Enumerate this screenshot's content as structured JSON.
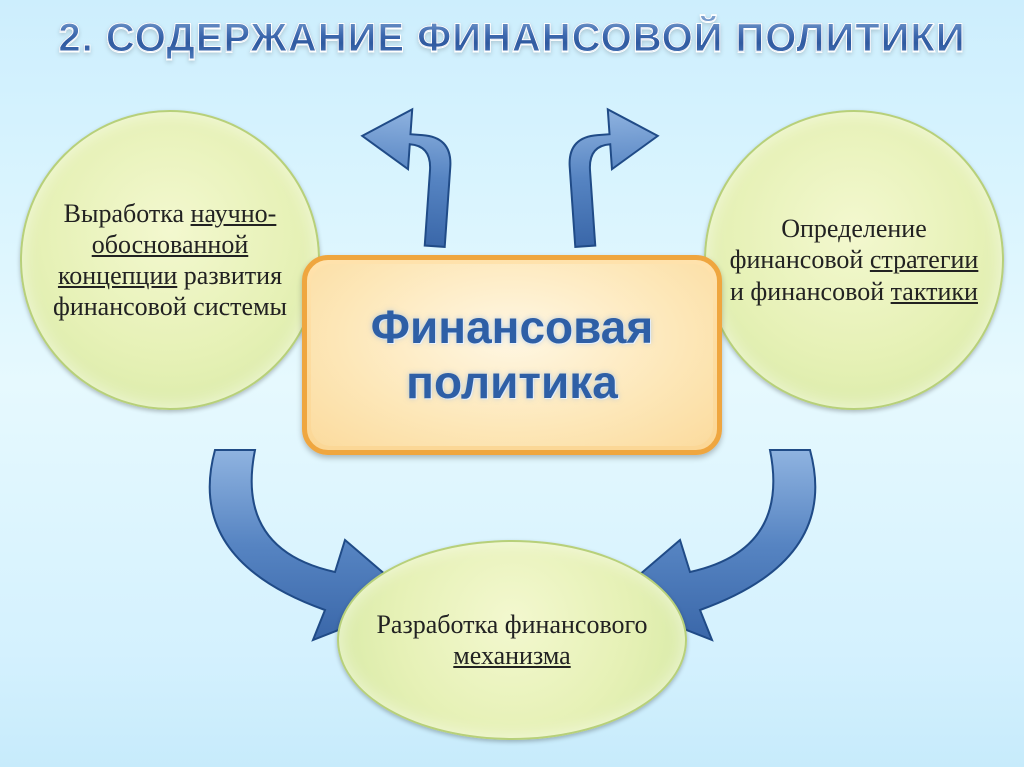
{
  "diagram": {
    "type": "flowchart",
    "title": "2. СОДЕРЖАНИЕ ФИНАНСОВОЙ ПОЛИТИКИ",
    "title_fontsize": 40,
    "title_gradient": [
      "#7fa3d0",
      "#2f5aa0"
    ],
    "title_stroke": "#ffffff",
    "background_gradient": [
      "#cdeefd",
      "#e6f9fe",
      "#c7ebfb"
    ],
    "center_node": {
      "line1": "Финансовая",
      "line2": "политика",
      "bg_gradient": [
        "#ffe2ac",
        "#fbdb9e"
      ],
      "border_color": "#efa63f",
      "text_color": "#2e5fa6",
      "font_size": 46
    },
    "ellipse_style": {
      "bg_gradient": [
        "#f3f8cf",
        "#d2e79e"
      ],
      "border_color": "#b7d07a",
      "text_color": "#222222",
      "font_size": 26
    },
    "nodes": {
      "left": {
        "html": "Выработка <span class='u'>научно-обоснованной концепции</span> развития финансовой системы"
      },
      "right": {
        "html": "Определение финансовой <span class='u'>стратегии</span> и финансовой <span class='u'>тактики</span>"
      },
      "bottom": {
        "html": "Разработка финансового <span class='u'>механизма</span>"
      }
    },
    "arrow_style": {
      "fill_gradient": [
        "#7ba4d8",
        "#3f6db1"
      ],
      "stroke": "#204b87"
    }
  }
}
